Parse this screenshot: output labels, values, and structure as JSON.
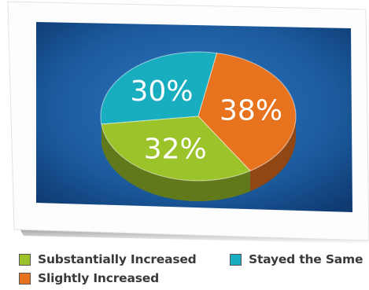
{
  "chart_data": {
    "type": "pie",
    "categories": [
      "Substantially Increased",
      "Slightly Increased",
      "Stayed the Same"
    ],
    "values": [
      32,
      38,
      30
    ],
    "labels": [
      "32%",
      "38%",
      "30%"
    ],
    "title": "",
    "legend_position": "bottom"
  },
  "legend": {
    "items": [
      {
        "label": "Substantially Increased",
        "color": "#9dc32a"
      },
      {
        "label": "Slightly Increased",
        "color": "#e8731f"
      },
      {
        "label": "Stayed the Same",
        "color": "#19adc0"
      }
    ]
  },
  "colors": {
    "background": "#1b5a9c",
    "card": "#ffffff",
    "label_text": "#ffffff"
  }
}
